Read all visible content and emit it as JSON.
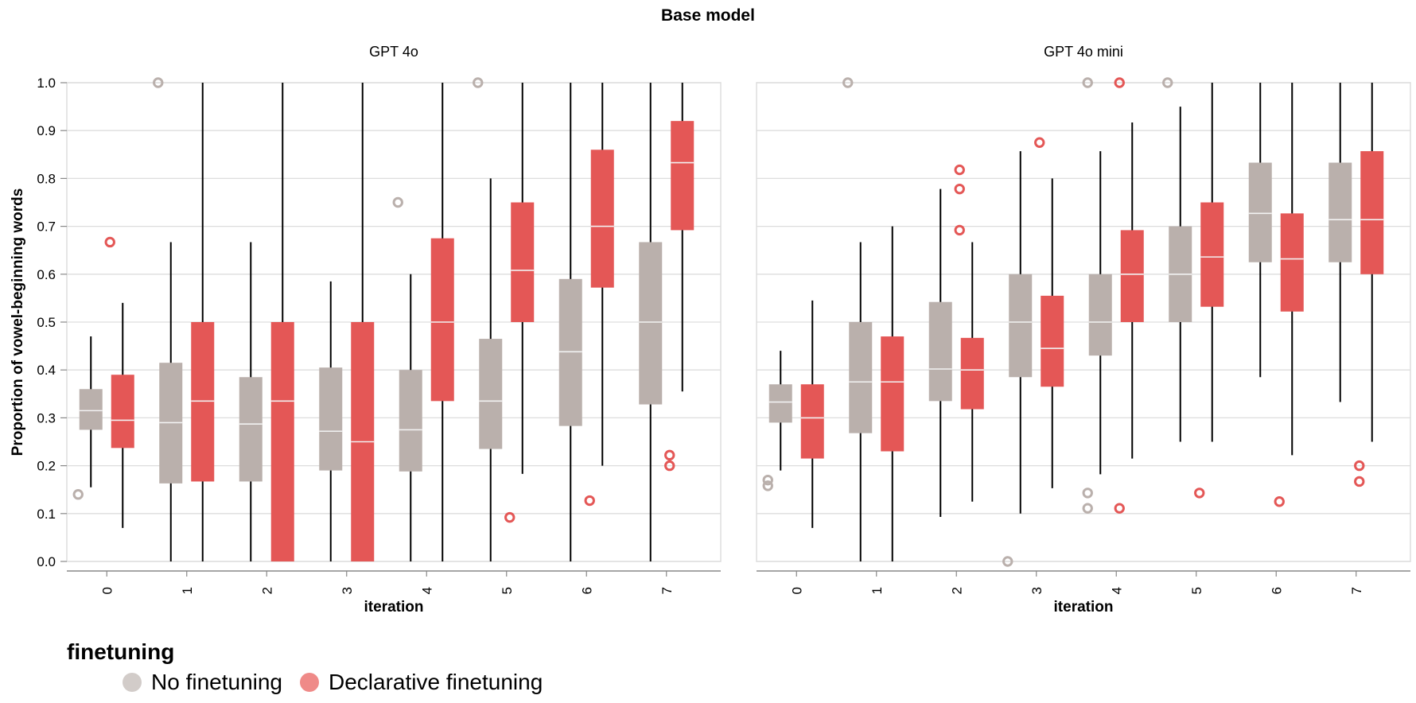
{
  "chart_data": {
    "type": "box",
    "title": "Base model",
    "ylabel": "Proportion of vowel-beginning words",
    "xlabel": "iteration",
    "ylim": [
      0,
      1
    ],
    "y_ticks": [
      "0.0",
      "0.1",
      "0.2",
      "0.3",
      "0.4",
      "0.5",
      "0.6",
      "0.7",
      "0.8",
      "0.9",
      "1.0"
    ],
    "categories": [
      "0",
      "1",
      "2",
      "3",
      "4",
      "5",
      "6",
      "7"
    ],
    "grid": true,
    "legend": {
      "title": "finetuning",
      "position": "bottom-left",
      "items": [
        {
          "name": "No finetuning",
          "color": "#bab0ac"
        },
        {
          "name": "Declarative finetuning",
          "color": "#e45756"
        }
      ]
    },
    "colors": {
      "No finetuning": "#bab0ac",
      "Declarative finetuning": "#e45756",
      "legend_no": "#d2ccc9",
      "legend_decl": "#ef8a88",
      "median": "#f2f2f2"
    },
    "panels": [
      {
        "title": "GPT 4o",
        "series": [
          {
            "name": "No finetuning",
            "boxes": [
              {
                "min": 0.155,
                "q1": 0.275,
                "median": 0.315,
                "q3": 0.36,
                "max": 0.47,
                "outliers": [
                  0.14
                ]
              },
              {
                "min": 0.0,
                "q1": 0.163,
                "median": 0.29,
                "q3": 0.415,
                "max": 0.667,
                "outliers": [
                  1.0
                ]
              },
              {
                "min": 0.0,
                "q1": 0.167,
                "median": 0.287,
                "q3": 0.385,
                "max": 0.667,
                "outliers": []
              },
              {
                "min": 0.0,
                "q1": 0.19,
                "median": 0.272,
                "q3": 0.405,
                "max": 0.585,
                "outliers": []
              },
              {
                "min": 0.0,
                "q1": 0.188,
                "median": 0.275,
                "q3": 0.4,
                "max": 0.6,
                "outliers": [
                  0.75
                ]
              },
              {
                "min": 0.0,
                "q1": 0.235,
                "median": 0.335,
                "q3": 0.465,
                "max": 0.8,
                "outliers": [
                  1.0
                ]
              },
              {
                "min": 0.0,
                "q1": 0.283,
                "median": 0.438,
                "q3": 0.59,
                "max": 1.0,
                "outliers": []
              },
              {
                "min": 0.0,
                "q1": 0.328,
                "median": 0.5,
                "q3": 0.667,
                "max": 1.0,
                "outliers": []
              }
            ]
          },
          {
            "name": "Declarative finetuning",
            "boxes": [
              {
                "min": 0.07,
                "q1": 0.237,
                "median": 0.295,
                "q3": 0.39,
                "max": 0.54,
                "outliers": [
                  0.667
                ]
              },
              {
                "min": 0.0,
                "q1": 0.167,
                "median": 0.335,
                "q3": 0.5,
                "max": 1.0,
                "outliers": []
              },
              {
                "min": 0.0,
                "q1": 0.0,
                "median": 0.335,
                "q3": 0.5,
                "max": 1.0,
                "outliers": []
              },
              {
                "min": 0.0,
                "q1": 0.0,
                "median": 0.25,
                "q3": 0.5,
                "max": 1.0,
                "outliers": []
              },
              {
                "min": 0.0,
                "q1": 0.335,
                "median": 0.5,
                "q3": 0.675,
                "max": 1.0,
                "outliers": []
              },
              {
                "min": 0.183,
                "q1": 0.5,
                "median": 0.608,
                "q3": 0.75,
                "max": 1.0,
                "outliers": [
                  0.092
                ]
              },
              {
                "min": 0.2,
                "q1": 0.572,
                "median": 0.7,
                "q3": 0.86,
                "max": 1.0,
                "outliers": [
                  0.127
                ]
              },
              {
                "min": 0.355,
                "q1": 0.692,
                "median": 0.833,
                "q3": 0.92,
                "max": 1.0,
                "outliers": [
                  0.222,
                  0.2
                ]
              }
            ]
          }
        ]
      },
      {
        "title": "GPT 4o mini",
        "series": [
          {
            "name": "No finetuning",
            "boxes": [
              {
                "min": 0.19,
                "q1": 0.29,
                "median": 0.333,
                "q3": 0.37,
                "max": 0.44,
                "outliers": [
                  0.17,
                  0.158
                ]
              },
              {
                "min": 0.0,
                "q1": 0.268,
                "median": 0.375,
                "q3": 0.5,
                "max": 0.667,
                "outliers": [
                  1.0
                ]
              },
              {
                "min": 0.093,
                "q1": 0.335,
                "median": 0.402,
                "q3": 0.542,
                "max": 0.778,
                "outliers": []
              },
              {
                "min": 0.1,
                "q1": 0.385,
                "median": 0.5,
                "q3": 0.6,
                "max": 0.857,
                "outliers": [
                  0.0
                ]
              },
              {
                "min": 0.182,
                "q1": 0.43,
                "median": 0.5,
                "q3": 0.6,
                "max": 0.857,
                "outliers": [
                  1.0,
                  0.143,
                  0.111
                ]
              },
              {
                "min": 0.25,
                "q1": 0.5,
                "median": 0.6,
                "q3": 0.7,
                "max": 0.95,
                "outliers": [
                  1.0
                ]
              },
              {
                "min": 0.385,
                "q1": 0.625,
                "median": 0.727,
                "q3": 0.833,
                "max": 1.0,
                "outliers": []
              },
              {
                "min": 0.333,
                "q1": 0.625,
                "median": 0.714,
                "q3": 0.833,
                "max": 1.0,
                "outliers": []
              }
            ]
          },
          {
            "name": "Declarative finetuning",
            "boxes": [
              {
                "min": 0.07,
                "q1": 0.215,
                "median": 0.3,
                "q3": 0.37,
                "max": 0.545,
                "outliers": []
              },
              {
                "min": 0.0,
                "q1": 0.23,
                "median": 0.375,
                "q3": 0.47,
                "max": 0.7,
                "outliers": []
              },
              {
                "min": 0.125,
                "q1": 0.318,
                "median": 0.4,
                "q3": 0.467,
                "max": 0.667,
                "outliers": [
                  0.818,
                  0.778,
                  0.692
                ]
              },
              {
                "min": 0.153,
                "q1": 0.365,
                "median": 0.445,
                "q3": 0.555,
                "max": 0.8,
                "outliers": [
                  0.875
                ]
              },
              {
                "min": 0.215,
                "q1": 0.5,
                "median": 0.6,
                "q3": 0.692,
                "max": 0.917,
                "outliers": [
                  1.0,
                  0.111
                ]
              },
              {
                "min": 0.25,
                "q1": 0.532,
                "median": 0.636,
                "q3": 0.75,
                "max": 1.0,
                "outliers": [
                  0.143
                ]
              },
              {
                "min": 0.222,
                "q1": 0.522,
                "median": 0.632,
                "q3": 0.727,
                "max": 1.0,
                "outliers": [
                  0.125
                ]
              },
              {
                "min": 0.25,
                "q1": 0.6,
                "median": 0.714,
                "q3": 0.857,
                "max": 1.0,
                "outliers": [
                  0.2,
                  0.167
                ]
              }
            ]
          }
        ]
      }
    ]
  }
}
